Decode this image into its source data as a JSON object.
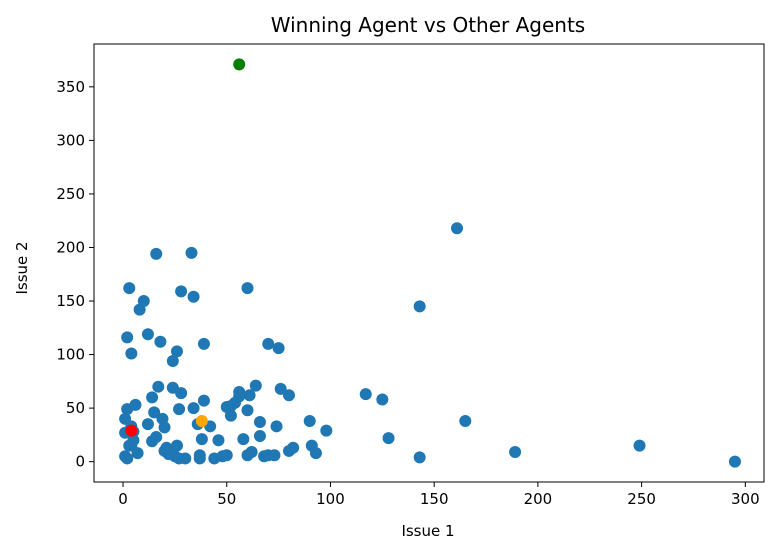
{
  "chart_data": {
    "type": "scatter",
    "title": "Winning Agent vs Other Agents",
    "xlabel": "Issue 1",
    "ylabel": "Issue 2",
    "xlim": [
      -14,
      309
    ],
    "ylim": [
      -19,
      390
    ],
    "xticks": [
      0,
      50,
      100,
      150,
      200,
      250,
      300
    ],
    "yticks": [
      0,
      50,
      100,
      150,
      200,
      250,
      300,
      350
    ],
    "grid": false,
    "series": [
      {
        "color": "#1f77b4",
        "points": [
          [
            1,
            40
          ],
          [
            1,
            27
          ],
          [
            2,
            49
          ],
          [
            2,
            116
          ],
          [
            3,
            162
          ],
          [
            4,
            101
          ],
          [
            1,
            5
          ],
          [
            2,
            3
          ],
          [
            4,
            15
          ],
          [
            5,
            28
          ],
          [
            6,
            53
          ],
          [
            7,
            8
          ],
          [
            8,
            142
          ],
          [
            10,
            150
          ],
          [
            12,
            119
          ],
          [
            12,
            35
          ],
          [
            14,
            60
          ],
          [
            15,
            46
          ],
          [
            14,
            19
          ],
          [
            16,
            23
          ],
          [
            16,
            194
          ],
          [
            17,
            70
          ],
          [
            18,
            112
          ],
          [
            19,
            40
          ],
          [
            20,
            32
          ],
          [
            20,
            10
          ],
          [
            21,
            13
          ],
          [
            22,
            7
          ],
          [
            24,
            69
          ],
          [
            24,
            94
          ],
          [
            25,
            5
          ],
          [
            26,
            15
          ],
          [
            26,
            103
          ],
          [
            27,
            49
          ],
          [
            27,
            3
          ],
          [
            28,
            159
          ],
          [
            28,
            64
          ],
          [
            30,
            3
          ],
          [
            33,
            195
          ],
          [
            34,
            154
          ],
          [
            34,
            50
          ],
          [
            36,
            35
          ],
          [
            37,
            3
          ],
          [
            37,
            6
          ],
          [
            38,
            21
          ],
          [
            39,
            110
          ],
          [
            39,
            57
          ],
          [
            42,
            33
          ],
          [
            44,
            3
          ],
          [
            46,
            20
          ],
          [
            48,
            5
          ],
          [
            50,
            6
          ],
          [
            50,
            51
          ],
          [
            52,
            52
          ],
          [
            52,
            43
          ],
          [
            54,
            55
          ],
          [
            56,
            65
          ],
          [
            56,
            61
          ],
          [
            58,
            21
          ],
          [
            60,
            48
          ],
          [
            60,
            162
          ],
          [
            60,
            6
          ],
          [
            61,
            62
          ],
          [
            62,
            9
          ],
          [
            64,
            71
          ],
          [
            66,
            37
          ],
          [
            66,
            24
          ],
          [
            68,
            5
          ],
          [
            70,
            6
          ],
          [
            70,
            110
          ],
          [
            73,
            6
          ],
          [
            74,
            33
          ],
          [
            75,
            106
          ],
          [
            76,
            68
          ],
          [
            80,
            10
          ],
          [
            80,
            62
          ],
          [
            82,
            13
          ],
          [
            90,
            38
          ],
          [
            91,
            15
          ],
          [
            93,
            8
          ],
          [
            98,
            29
          ],
          [
            117,
            63
          ],
          [
            125,
            58
          ],
          [
            128,
            22
          ],
          [
            143,
            145
          ],
          [
            143,
            4
          ],
          [
            161,
            218
          ],
          [
            165,
            38
          ],
          [
            189,
            9
          ],
          [
            249,
            15
          ],
          [
            295,
            0
          ],
          [
            5,
            20
          ],
          [
            3,
            15
          ],
          [
            4,
            33
          ]
        ]
      },
      {
        "color": "#008000",
        "points": [
          [
            56,
            371
          ]
        ]
      },
      {
        "color": "#ffa500",
        "points": [
          [
            38,
            38
          ]
        ]
      },
      {
        "color": "#ff0000",
        "points": [
          [
            4,
            29
          ]
        ]
      }
    ]
  }
}
